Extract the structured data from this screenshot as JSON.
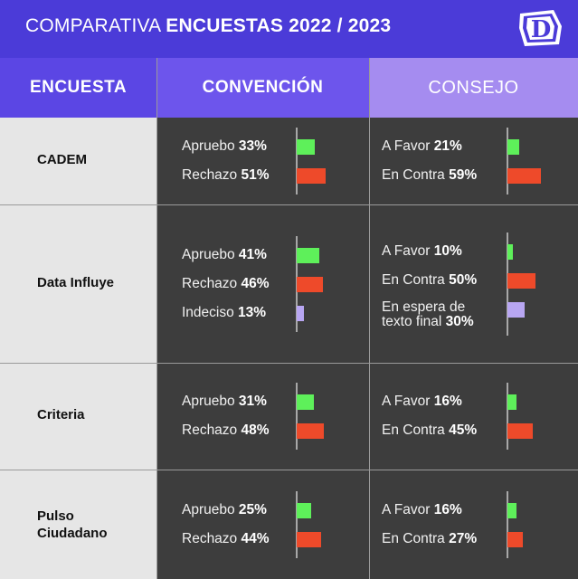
{
  "header": {
    "title_light": "COMPARATIVA",
    "title_bold": "ENCUESTAS 2022 / 2023",
    "logo_letter": "D"
  },
  "columns": {
    "encuesta": "ENCUESTA",
    "convencion": "CONVENCIÓN",
    "consejo": "CONSEJO"
  },
  "colors": {
    "favor": "#5ef05a",
    "contra": "#ee4a2a",
    "otro": "#b8a6f2"
  },
  "chart_data": {
    "type": "bar",
    "unit": "%",
    "rows": [
      {
        "name": "CADEM",
        "convencion": [
          {
            "label": "Apruebo",
            "value": 33,
            "kind": "favor"
          },
          {
            "label": "Rechazo",
            "value": 51,
            "kind": "contra"
          }
        ],
        "consejo": [
          {
            "label": "A Favor",
            "value": 21,
            "kind": "favor"
          },
          {
            "label": "En Contra",
            "value": 59,
            "kind": "contra"
          }
        ]
      },
      {
        "name": "Data Influye",
        "convencion": [
          {
            "label": "Apruebo",
            "value": 41,
            "kind": "favor"
          },
          {
            "label": "Rechazo",
            "value": 46,
            "kind": "contra"
          },
          {
            "label": "Indeciso",
            "value": 13,
            "kind": "otro"
          }
        ],
        "consejo": [
          {
            "label": "A Favor",
            "value": 10,
            "kind": "favor"
          },
          {
            "label": "En Contra",
            "value": 50,
            "kind": "contra"
          },
          {
            "label": "En espera de texto final",
            "value": 30,
            "kind": "otro"
          }
        ]
      },
      {
        "name": "Criteria",
        "convencion": [
          {
            "label": "Apruebo",
            "value": 31,
            "kind": "favor"
          },
          {
            "label": "Rechazo",
            "value": 48,
            "kind": "contra"
          }
        ],
        "consejo": [
          {
            "label": "A Favor",
            "value": 16,
            "kind": "favor"
          },
          {
            "label": "En Contra",
            "value": 45,
            "kind": "contra"
          }
        ]
      },
      {
        "name": "Pulso Ciudadano",
        "convencion": [
          {
            "label": "Apruebo",
            "value": 25,
            "kind": "favor"
          },
          {
            "label": "Rechazo",
            "value": 44,
            "kind": "contra"
          }
        ],
        "consejo": [
          {
            "label": "A Favor",
            "value": 16,
            "kind": "favor"
          },
          {
            "label": "En Contra",
            "value": 27,
            "kind": "contra"
          }
        ]
      }
    ]
  }
}
